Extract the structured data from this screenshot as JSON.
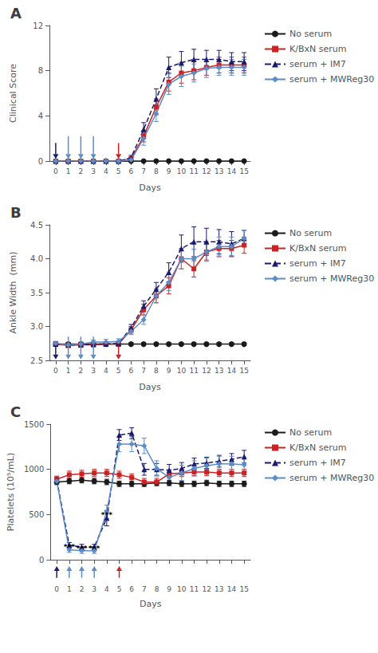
{
  "chart_data": [
    {
      "type": "line",
      "title": "A",
      "xlabel": "Days",
      "ylabel": "Clinical Score",
      "x": [
        0,
        1,
        2,
        3,
        4,
        5,
        6,
        7,
        8,
        9,
        10,
        11,
        12,
        13,
        14,
        15
      ],
      "xlim": [
        -0.5,
        15.5
      ],
      "xticks": [
        0,
        1,
        2,
        3,
        4,
        5,
        6,
        7,
        8,
        9,
        10,
        11,
        12,
        13,
        14,
        15
      ],
      "ylim": [
        0,
        12
      ],
      "yticks": [
        0,
        4,
        8,
        12
      ],
      "grid": false,
      "legend": "right",
      "series": [
        {
          "name": "No serum",
          "color": "#1a1a1a",
          "marker": "circle",
          "line_style": "solid",
          "values": [
            0,
            0,
            0,
            0,
            0,
            0,
            0,
            0,
            0,
            0,
            0,
            0,
            0,
            0,
            0,
            0
          ],
          "errors": [
            0,
            0,
            0,
            0,
            0,
            0,
            0,
            0,
            0,
            0,
            0,
            0,
            0,
            0,
            0,
            0
          ]
        },
        {
          "name": "K/BxN serum",
          "color": "#cc2222",
          "marker": "square",
          "line_style": "solid",
          "values": [
            0,
            0,
            0,
            0,
            0,
            0,
            0.2,
            2.2,
            4.8,
            7.0,
            7.8,
            8.0,
            8.3,
            8.5,
            8.5,
            8.5
          ],
          "errors": [
            0,
            0,
            0,
            0,
            0,
            0,
            0.15,
            0.5,
            0.7,
            0.8,
            0.9,
            0.8,
            0.7,
            0.7,
            0.7,
            0.7
          ]
        },
        {
          "name": "serum + IM7",
          "color": "#1a1a6e",
          "marker": "triangle",
          "line_style": "dashed",
          "values": [
            0,
            0,
            0,
            0,
            0,
            0,
            0.3,
            2.8,
            5.5,
            8.3,
            8.7,
            9.0,
            9.0,
            9.0,
            8.8,
            8.8
          ],
          "errors": [
            0,
            0,
            0,
            0,
            0,
            0,
            0.2,
            0.6,
            0.9,
            0.9,
            1.0,
            0.9,
            0.8,
            0.8,
            0.8,
            0.8
          ]
        },
        {
          "name": "serum + MWReg30",
          "color": "#5b8dc8",
          "marker": "diamond",
          "line_style": "solid",
          "values": [
            0,
            0,
            0,
            0,
            0,
            0,
            0.1,
            2.0,
            4.2,
            6.8,
            7.5,
            7.8,
            8.2,
            8.3,
            8.3,
            8.3
          ],
          "errors": [
            0,
            0,
            0,
            0,
            0,
            0,
            0.2,
            0.6,
            0.7,
            0.9,
            0.9,
            0.8,
            0.8,
            0.7,
            0.7,
            0.7
          ]
        }
      ],
      "arrows": [
        {
          "x": 0,
          "from": 1.6,
          "to": 0.2,
          "color": "#1a1a6e"
        },
        {
          "x": 1,
          "from": 2.2,
          "to": 0.2,
          "color": "#5b8dc8"
        },
        {
          "x": 2,
          "from": 2.2,
          "to": 0.2,
          "color": "#5b8dc8"
        },
        {
          "x": 3,
          "from": 2.2,
          "to": 0.2,
          "color": "#5b8dc8"
        },
        {
          "x": 5,
          "from": 1.6,
          "to": 0.2,
          "color": "#cc2222"
        }
      ]
    },
    {
      "type": "line",
      "title": "B",
      "xlabel": "Days",
      "ylabel": "Ankle Width  (mm)",
      "x": [
        0,
        1,
        2,
        3,
        4,
        5,
        6,
        7,
        8,
        9,
        10,
        11,
        12,
        13,
        14,
        15
      ],
      "xlim": [
        -0.5,
        15.5
      ],
      "xticks": [
        0,
        1,
        2,
        3,
        4,
        5,
        6,
        7,
        8,
        9,
        10,
        11,
        12,
        13,
        14,
        15
      ],
      "ylim": [
        2.5,
        4.5
      ],
      "yticks": [
        2.5,
        {
          "value": 3.0,
          "label": "3.0"
        },
        3.5,
        {
          "value": 4.0,
          "label": "4.0"
        },
        4.5
      ],
      "grid": false,
      "legend": "right",
      "series": [
        {
          "name": "No serum",
          "color": "#1a1a1a",
          "marker": "circle",
          "line_style": "solid",
          "values": [
            2.74,
            2.74,
            2.74,
            2.74,
            2.74,
            2.74,
            2.74,
            2.74,
            2.74,
            2.74,
            2.74,
            2.74,
            2.74,
            2.74,
            2.74,
            2.74
          ],
          "errors": [
            0.02,
            0.02,
            0.02,
            0.02,
            0.02,
            0.02,
            0.02,
            0.02,
            0.02,
            0.02,
            0.02,
            0.02,
            0.02,
            0.02,
            0.02,
            0.02
          ]
        },
        {
          "name": "K/BxN serum",
          "color": "#cc2222",
          "marker": "square",
          "line_style": "solid",
          "values": [
            2.74,
            2.72,
            2.73,
            2.73,
            2.74,
            2.74,
            2.95,
            3.25,
            3.45,
            3.6,
            4.0,
            3.85,
            4.1,
            4.15,
            4.15,
            4.2
          ],
          "errors": [
            0.03,
            0.03,
            0.03,
            0.03,
            0.03,
            0.03,
            0.05,
            0.08,
            0.1,
            0.12,
            0.15,
            0.12,
            0.12,
            0.12,
            0.12,
            0.12
          ]
        },
        {
          "name": "serum + IM7",
          "color": "#1a1a6e",
          "marker": "triangle",
          "line_style": "dashed",
          "values": [
            2.74,
            2.73,
            2.73,
            2.74,
            2.74,
            2.75,
            2.98,
            3.3,
            3.55,
            3.8,
            4.15,
            4.25,
            4.25,
            4.25,
            4.22,
            4.3
          ],
          "errors": [
            0.03,
            0.03,
            0.03,
            0.03,
            0.03,
            0.03,
            0.05,
            0.08,
            0.1,
            0.14,
            0.2,
            0.22,
            0.2,
            0.18,
            0.18,
            0.12
          ]
        },
        {
          "name": "serum + MWReg30",
          "color": "#5b8dc8",
          "marker": "diamond",
          "line_style": "solid",
          "values": [
            2.75,
            2.73,
            2.74,
            2.77,
            2.77,
            2.78,
            2.93,
            3.1,
            3.45,
            3.65,
            4.0,
            4.0,
            4.1,
            4.18,
            4.18,
            4.3
          ],
          "errors": [
            0.03,
            0.03,
            0.03,
            0.03,
            0.04,
            0.04,
            0.05,
            0.07,
            0.1,
            0.12,
            0.15,
            0.14,
            0.14,
            0.14,
            0.14,
            0.12
          ]
        }
      ],
      "arrows": [
        {
          "x": 0,
          "from": 2.72,
          "to": 2.515,
          "color": "#1a1a6e"
        },
        {
          "x": 1,
          "from": 2.85,
          "to": 2.515,
          "color": "#5b8dc8"
        },
        {
          "x": 2,
          "from": 2.85,
          "to": 2.515,
          "color": "#5b8dc8"
        },
        {
          "x": 3,
          "from": 2.85,
          "to": 2.515,
          "color": "#5b8dc8"
        },
        {
          "x": 5,
          "from": 2.72,
          "to": 2.515,
          "color": "#cc2222"
        }
      ]
    },
    {
      "type": "line",
      "title": "C",
      "xlabel": "Days",
      "ylabel": "Platelets (10⁵/mL)",
      "x": [
        0,
        1,
        2,
        3,
        4,
        5,
        6,
        7,
        8,
        9,
        10,
        11,
        12,
        13,
        14,
        15
      ],
      "xlim": [
        -0.5,
        15.5
      ],
      "xticks": [
        0,
        1,
        2,
        3,
        4,
        5,
        6,
        7,
        8,
        9,
        10,
        11,
        12,
        13,
        14,
        15
      ],
      "ylim": [
        0,
        1500
      ],
      "yticks": [
        0,
        500,
        1000,
        1500
      ],
      "grid": false,
      "legend": "right",
      "series": [
        {
          "name": "No serum",
          "color": "#1a1a1a",
          "marker": "circle",
          "line_style": "solid",
          "values": [
            860,
            870,
            880,
            870,
            860,
            840,
            840,
            840,
            850,
            850,
            840,
            840,
            850,
            840,
            840,
            840
          ],
          "errors": [
            30,
            30,
            30,
            30,
            30,
            30,
            30,
            30,
            30,
            30,
            30,
            30,
            30,
            30,
            30,
            30
          ]
        },
        {
          "name": "K/BxN serum",
          "color": "#cc2222",
          "marker": "square",
          "line_style": "solid",
          "values": [
            890,
            940,
            950,
            960,
            960,
            940,
            910,
            860,
            860,
            950,
            960,
            970,
            970,
            960,
            960,
            960
          ],
          "errors": [
            35,
            40,
            40,
            40,
            40,
            40,
            40,
            40,
            40,
            40,
            40,
            40,
            40,
            40,
            40,
            40
          ]
        },
        {
          "name": "serum + IM7",
          "color": "#1a1a6e",
          "marker": "triangle",
          "line_style": "dashed",
          "values": [
            880,
            160,
            140,
            140,
            460,
            1380,
            1400,
            1000,
            1000,
            990,
            1010,
            1060,
            1070,
            1090,
            1110,
            1140
          ],
          "errors": [
            35,
            30,
            30,
            30,
            85,
            60,
            60,
            65,
            65,
            65,
            65,
            65,
            65,
            65,
            65,
            70
          ]
        },
        {
          "name": "serum + MWReg30",
          "color": "#5b8dc8",
          "marker": "diamond",
          "line_style": "solid",
          "values": [
            870,
            110,
            100,
            100,
            530,
            1280,
            1280,
            1260,
            1010,
            910,
            960,
            1010,
            1040,
            1060,
            1060,
            1050
          ],
          "errors": [
            30,
            30,
            30,
            30,
            75,
            85,
            85,
            85,
            85,
            85,
            85,
            85,
            85,
            85,
            85,
            85
          ]
        }
      ],
      "annotations": [
        {
          "text": "***",
          "x": 1,
          "y": 140
        },
        {
          "text": "***",
          "x": 2,
          "y": 120
        },
        {
          "text": "***",
          "x": 3,
          "y": 120
        },
        {
          "text": "***",
          "x": 4,
          "y": 490
        }
      ],
      "arrows": [
        {
          "x": 0,
          "from": -200,
          "to": -70,
          "color": "#1a1a6e"
        },
        {
          "x": 1,
          "from": -200,
          "to": -70,
          "color": "#5b8dc8"
        },
        {
          "x": 2,
          "from": -200,
          "to": -70,
          "color": "#5b8dc8"
        },
        {
          "x": 3,
          "from": -200,
          "to": -70,
          "color": "#5b8dc8"
        },
        {
          "x": 5,
          "from": -200,
          "to": -70,
          "color": "#cc2222"
        }
      ]
    }
  ]
}
